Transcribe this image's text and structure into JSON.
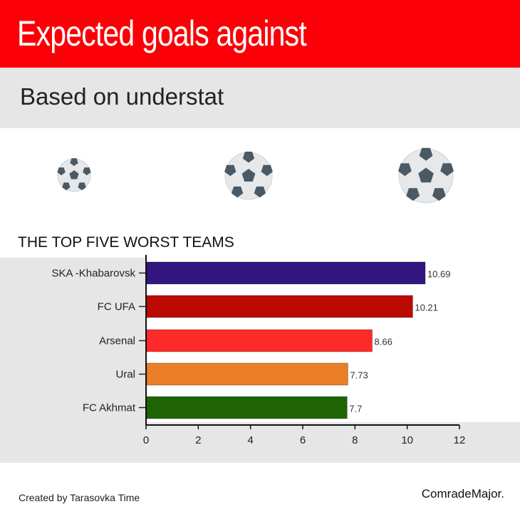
{
  "header": {
    "title": "Expected goals against",
    "subtitle": "Based on understat"
  },
  "footer": {
    "credit": "Created by Tarasovka Time",
    "brand": "ComradeMajor."
  },
  "icons": [
    "soccer-ball-icon",
    "soccer-ball-icon",
    "soccer-ball-icon"
  ],
  "chart_data": {
    "type": "bar",
    "orientation": "horizontal",
    "title": "THE TOP FIVE WORST TEAMS",
    "categories": [
      "SKA -Khabarovsk",
      "FC UFA",
      "Arsenal",
      "Ural",
      "FC Akhmat"
    ],
    "values": [
      10.69,
      10.21,
      8.66,
      7.73,
      7.7
    ],
    "colors": [
      "#32157f",
      "#bb0a02",
      "#fe2a2a",
      "#eb7f27",
      "#1e6405"
    ],
    "xlim": [
      0,
      12
    ],
    "xticks": [
      0,
      2,
      4,
      6,
      8,
      10,
      12
    ],
    "grid": false
  }
}
